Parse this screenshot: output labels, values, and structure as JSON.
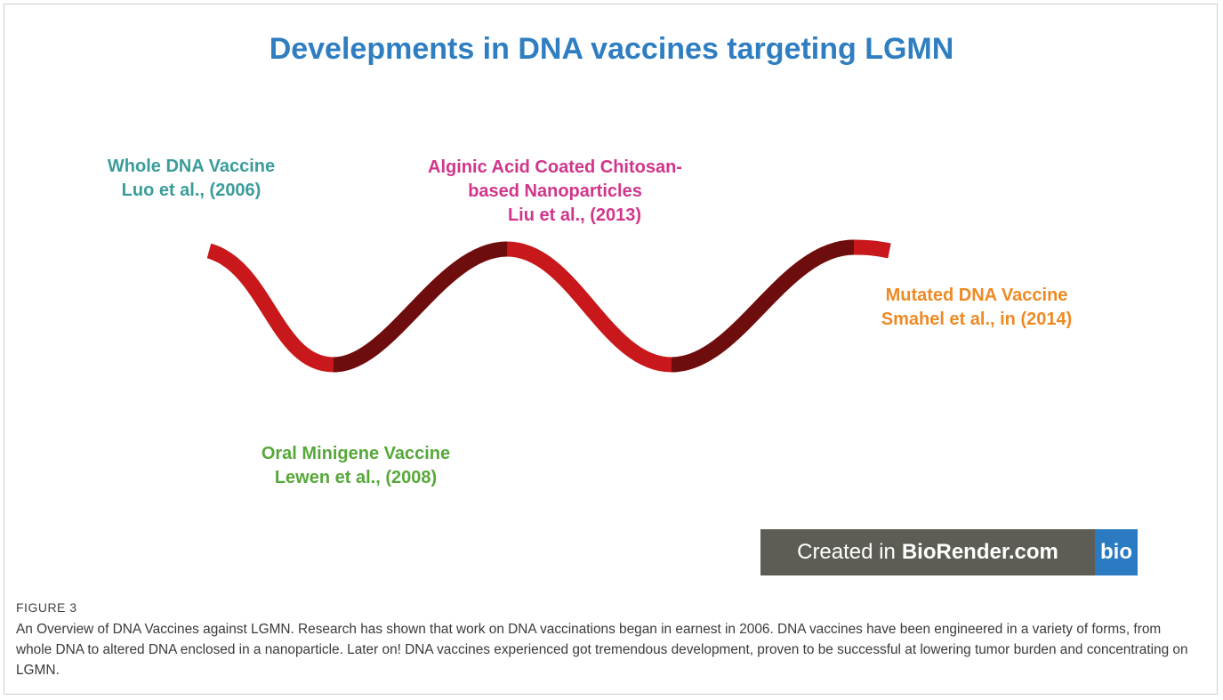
{
  "figure": {
    "title": "Develepments in DNA vaccines targeting LGMN",
    "labels": [
      {
        "lines": [
          "Whole DNA Vaccine",
          "Luo et al., (2006)"
        ]
      },
      {
        "lines": [
          "Alginic Acid Coated Chitosan-",
          "based Nanoparticles",
          "Liu et al., (2013)"
        ]
      },
      {
        "lines": [
          "Mutated DNA Vaccine",
          "Smahel et al., in (2014)"
        ]
      },
      {
        "lines": [
          "Oral Minigene Vaccine",
          "Lewen et al., (2008)"
        ]
      }
    ],
    "badge": {
      "prefix": "Created in",
      "brand": "BioRender.com",
      "logo": "bio"
    },
    "caption": {
      "label": "FIGURE 3",
      "text": "An Overview of DNA Vaccines against LGMN. Research has shown that work on DNA vaccinations began in earnest in 2006. DNA vaccines have been engineered in a variety of forms, from whole DNA to altered DNA enclosed in a nanoparticle. Later on! DNA vaccines experienced got tremendous development, proven to be successful at lowering tumor burden and concentrating on LGMN."
    }
  }
}
